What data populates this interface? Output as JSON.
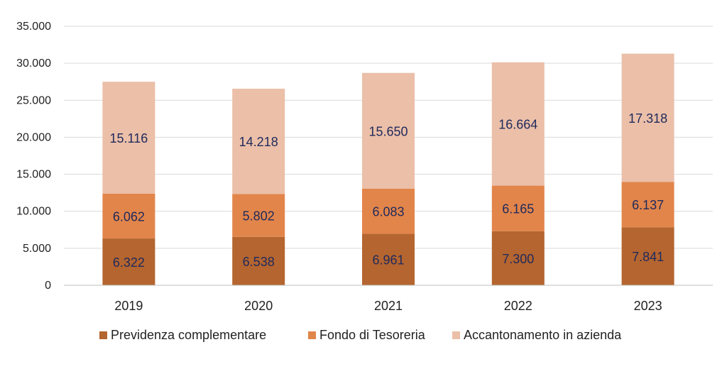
{
  "chart_data": {
    "type": "bar",
    "stacked": true,
    "categories": [
      "2019",
      "2020",
      "2021",
      "2022",
      "2023"
    ],
    "series": [
      {
        "name": "Previdenza complementare",
        "values": [
          6322,
          6538,
          6961,
          7300,
          7841
        ],
        "labels": [
          "6.322",
          "6.538",
          "6.961",
          "7.300",
          "7.841"
        ],
        "color": "#b5652f"
      },
      {
        "name": "Fondo di Tesoreria",
        "values": [
          6062,
          5802,
          6083,
          6165,
          6137
        ],
        "labels": [
          "6.062",
          "5.802",
          "6.083",
          "6.165",
          "6.137"
        ],
        "color": "#e2854a"
      },
      {
        "name": "Accantonamento in azienda",
        "values": [
          15116,
          14218,
          15650,
          16664,
          17318
        ],
        "labels": [
          "15.116",
          "14.218",
          "15.650",
          "16.664",
          "17.318"
        ],
        "color": "#ebbfa8"
      }
    ],
    "ylim": [
      0,
      35000
    ],
    "yticks": [
      0,
      5000,
      10000,
      15000,
      20000,
      25000,
      30000,
      35000
    ],
    "ytick_labels": [
      "0",
      "5.000",
      "10.000",
      "15.000",
      "20.000",
      "25.000",
      "30.000",
      "35.000"
    ],
    "grid": true,
    "legend": "bottom",
    "title": "",
    "xlabel": "",
    "ylabel": ""
  }
}
